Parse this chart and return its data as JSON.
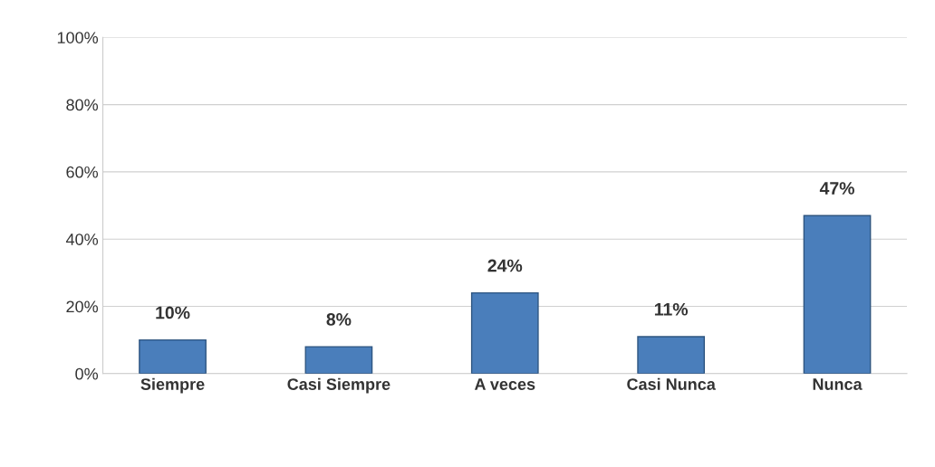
{
  "chart_data": {
    "type": "bar",
    "categories": [
      "Siempre",
      "Casi Siempre",
      "A veces",
      "Casi Nunca",
      "Nunca"
    ],
    "values": [
      10,
      8,
      24,
      11,
      47
    ],
    "value_labels": [
      "10%",
      "8%",
      "24%",
      "11%",
      "47%"
    ],
    "color": "#4a7ebb",
    "ylim": [
      0,
      100
    ],
    "yticks": [
      {
        "value": 0,
        "label": "0%"
      },
      {
        "value": 20,
        "label": "20%"
      },
      {
        "value": 40,
        "label": "40%"
      },
      {
        "value": 60,
        "label": "60%"
      },
      {
        "value": 80,
        "label": "80%"
      },
      {
        "value": 100,
        "label": "100%"
      }
    ],
    "grid": "y"
  }
}
